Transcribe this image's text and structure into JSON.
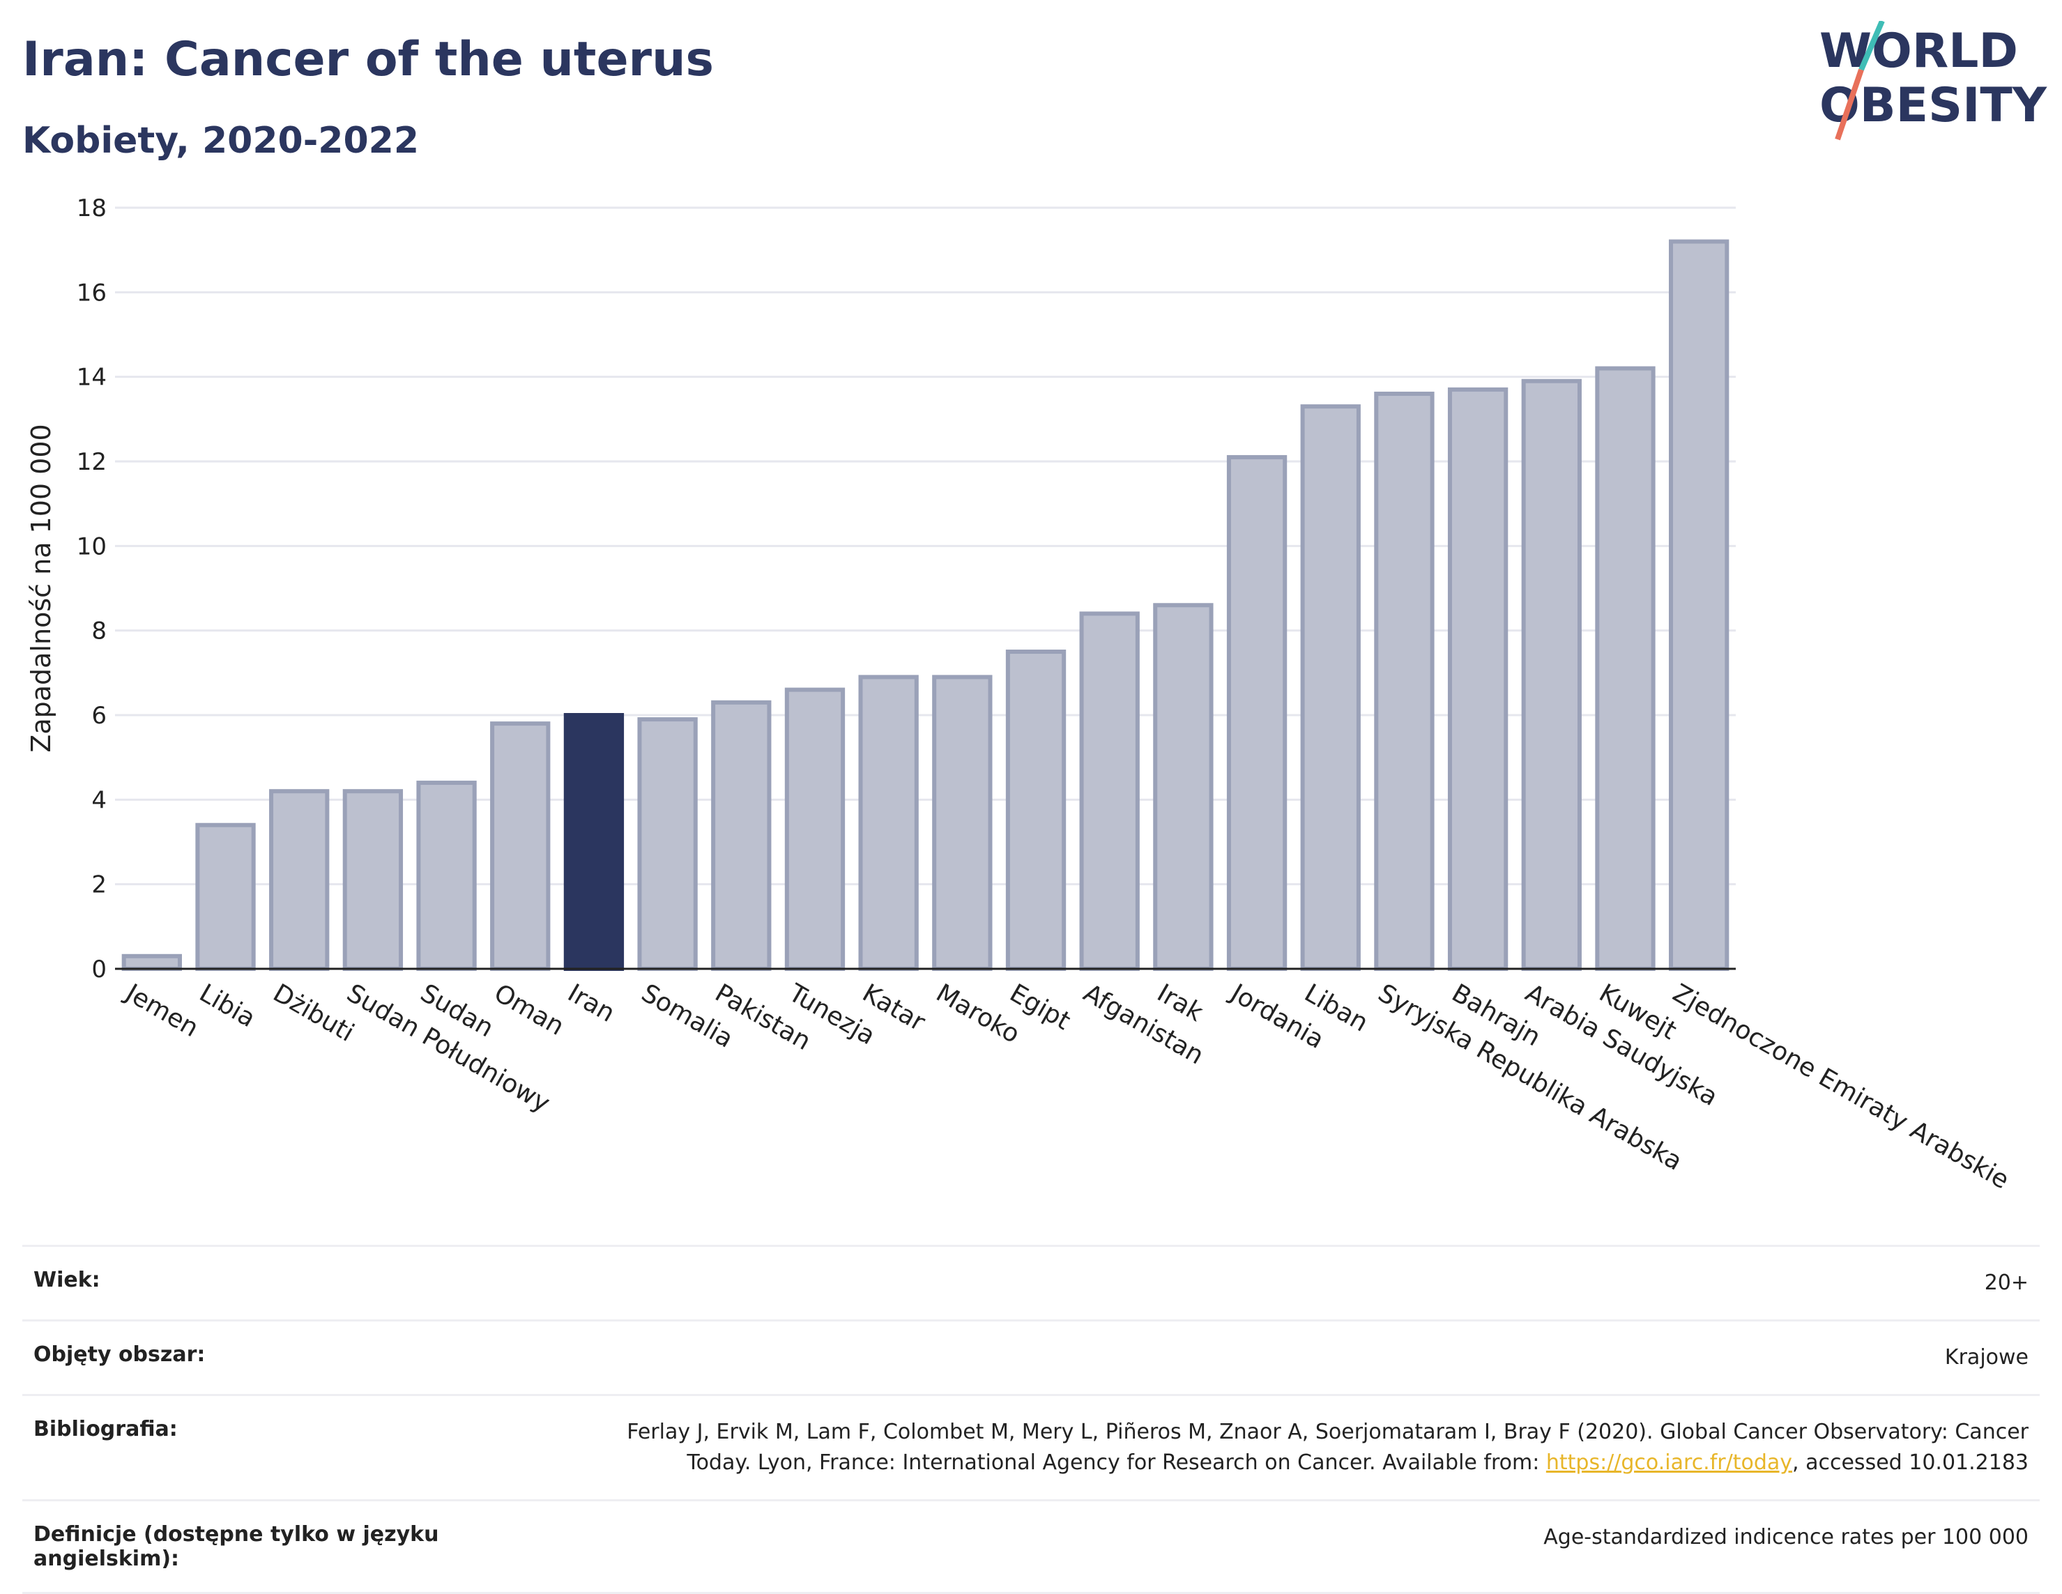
{
  "header": {
    "title": "Iran: Cancer of the uterus",
    "subtitle": "Kobiety, 2020-2022",
    "logo_line1": "WORLD",
    "logo_line2": "OBESITY"
  },
  "colors": {
    "highlight": "#2b365f",
    "bar": "#bcc0cf",
    "bar_stroke": "#9aa1b8",
    "grid": "#e6e7ee",
    "logo_teal": "#3fbdb6",
    "logo_coral": "#e8705a"
  },
  "chart_data": {
    "type": "bar",
    "title": "Iran: Cancer of the uterus",
    "subtitle": "Kobiety, 2020-2022",
    "xlabel": "",
    "ylabel": "Zapadalność na 100 000",
    "ylim": [
      0,
      18
    ],
    "yticks": [
      0,
      2,
      4,
      6,
      8,
      10,
      12,
      14,
      16,
      18
    ],
    "grid": true,
    "highlight": "Iran",
    "categories": [
      "Jemen",
      "Libia",
      "Dżibuti",
      "Sudan Południowy",
      "Sudan",
      "Oman",
      "Iran",
      "Somalia",
      "Pakistan",
      "Tunezja",
      "Katar",
      "Maroko",
      "Egipt",
      "Afganistan",
      "Irak",
      "Jordania",
      "Liban",
      "Syryjska Republika Arabska",
      "Bahrajn",
      "Arabia Saudyjska",
      "Kuwejt",
      "Zjednoczone Emiraty Arabskie"
    ],
    "values": [
      0.3,
      3.4,
      4.2,
      4.2,
      4.4,
      5.8,
      6.0,
      5.9,
      6.3,
      6.6,
      6.9,
      6.9,
      7.5,
      8.4,
      8.6,
      12.1,
      13.3,
      13.6,
      13.7,
      13.9,
      14.2,
      17.2
    ]
  },
  "info": {
    "age_label": "Wiek:",
    "age_value": "20+",
    "area_label": "Objęty obszar:",
    "area_value": "Krajowe",
    "bib_label": "Bibliografia:",
    "bib_line1": "Ferlay J, Ervik M, Lam F, Colombet M, Mery L, Piñeros M, Znaor A, Soerjomataram I, Bray F (2020). Global Cancer Observatory: Cancer",
    "bib_line2_pre": "Today. Lyon, France: International Agency for Research on Cancer. Available from: ",
    "bib_link": "https://gco.iarc.fr/today",
    "bib_line2_post": ", accessed 10.01.2183",
    "def_label": "Definicje (dostępne tylko w języku angielskim):",
    "def_value": "Age-standardized indicence rates per 100 000"
  }
}
